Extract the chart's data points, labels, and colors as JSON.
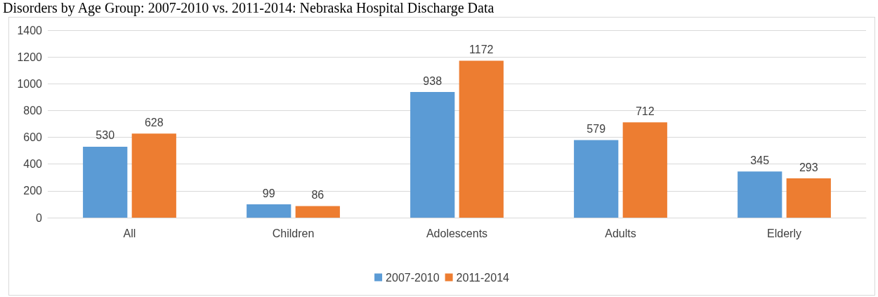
{
  "chart_data": {
    "type": "bar",
    "title": "Disorders by Age Group: 2007-2010 vs. 2011-2014: Nebraska Hospital Discharge Data",
    "categories": [
      "All",
      "Children",
      "Adolescents",
      "Adults",
      "Elderly"
    ],
    "series": [
      {
        "name": "2007-2010",
        "color": "#5b9bd5",
        "values": [
          530,
          99,
          938,
          579,
          345
        ]
      },
      {
        "name": "2011-2014",
        "color": "#ed7d31",
        "values": [
          628,
          86,
          1172,
          712,
          293
        ]
      }
    ],
    "ylim": [
      0,
      1400
    ],
    "yticks": [
      0,
      200,
      400,
      600,
      800,
      1000,
      1200,
      1400
    ],
    "grid": "y",
    "legend": "bottom",
    "data_labels": true
  }
}
